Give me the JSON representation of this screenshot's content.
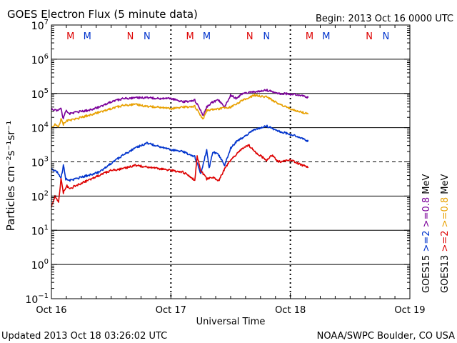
{
  "chart_data": {
    "type": "line",
    "title": "GOES Electron Flux (5 minute data)",
    "begin_label": "Begin: 2013 Oct 16 0000 UTC",
    "xlabel": "Universal Time",
    "ylabel": "Particles cm⁻²s⁻¹sr⁻¹",
    "y_scale": "log",
    "ylim_exp": [
      -1,
      7
    ],
    "y_ticks": [
      {
        "base": "10",
        "exp": "7",
        "e": 7
      },
      {
        "base": "10",
        "exp": "6",
        "e": 6
      },
      {
        "base": "10",
        "exp": "5",
        "e": 5
      },
      {
        "base": "10",
        "exp": "4",
        "e": 4
      },
      {
        "base": "10",
        "exp": "3",
        "e": 3
      },
      {
        "base": "10",
        "exp": "2",
        "e": 2
      },
      {
        "base": "10",
        "exp": "1",
        "e": 1
      },
      {
        "base": "10",
        "exp": "0",
        "e": 0
      },
      {
        "base": "10",
        "exp": "−1",
        "e": -1
      }
    ],
    "xlim_days": [
      0,
      3
    ],
    "x_ticks": [
      {
        "label": "Oct 16",
        "day": 0
      },
      {
        "label": "Oct 17",
        "day": 1
      },
      {
        "label": "Oct 18",
        "day": 2
      },
      {
        "label": "Oct 19",
        "day": 3
      }
    ],
    "threshold_exp": 3,
    "mn_markers": [
      {
        "label": "M",
        "day": 0.16,
        "sat": "GOES13"
      },
      {
        "label": "M",
        "day": 0.3,
        "sat": "GOES15"
      },
      {
        "label": "N",
        "day": 0.66,
        "sat": "GOES13"
      },
      {
        "label": "N",
        "day": 0.8,
        "sat": "GOES15"
      },
      {
        "label": "M",
        "day": 1.16,
        "sat": "GOES13"
      },
      {
        "label": "M",
        "day": 1.3,
        "sat": "GOES15"
      },
      {
        "label": "N",
        "day": 1.66,
        "sat": "GOES13"
      },
      {
        "label": "N",
        "day": 1.8,
        "sat": "GOES15"
      },
      {
        "label": "M",
        "day": 2.16,
        "sat": "GOES13"
      },
      {
        "label": "M",
        "day": 2.3,
        "sat": "GOES15"
      },
      {
        "label": "N",
        "day": 2.66,
        "sat": "GOES13"
      },
      {
        "label": "N",
        "day": 2.8,
        "sat": "GOES15"
      }
    ],
    "satellite_colors": {
      "GOES13": "#dd0000",
      "GOES15": "#0033cc"
    },
    "legend": {
      "GOES15": {
        "name": "GOES15",
        "e2": ">=2",
        "e08": ">=0.8",
        "unit": "MeV"
      },
      "GOES13": {
        "name": "GOES13",
        "e2": ">=2",
        "e08": ">=0.8",
        "unit": "MeV"
      }
    },
    "series": [
      {
        "name": "GOES15 >=0.8 MeV",
        "color": "#7b0099",
        "days": [
          0,
          0.05,
          0.08,
          0.1,
          0.12,
          0.15,
          0.2,
          0.3,
          0.4,
          0.5,
          0.6,
          0.7,
          0.8,
          0.9,
          1.0,
          1.1,
          1.2,
          1.25,
          1.27,
          1.3,
          1.35,
          1.4,
          1.45,
          1.5,
          1.55,
          1.6,
          1.7,
          1.8,
          1.9,
          2.0,
          2.1,
          2.15
        ],
        "log_values": [
          4.55,
          4.5,
          4.55,
          4.25,
          4.5,
          4.4,
          4.45,
          4.5,
          4.6,
          4.75,
          4.85,
          4.87,
          4.88,
          4.85,
          4.85,
          4.75,
          4.8,
          4.5,
          4.35,
          4.6,
          4.75,
          4.8,
          4.6,
          4.95,
          4.85,
          5.0,
          5.05,
          5.1,
          5.0,
          4.98,
          4.95,
          4.88
        ]
      },
      {
        "name": "GOES13 >=0.8 MeV",
        "color": "#e8a000",
        "days": [
          0,
          0.03,
          0.06,
          0.08,
          0.1,
          0.13,
          0.2,
          0.3,
          0.4,
          0.5,
          0.6,
          0.7,
          0.8,
          0.9,
          1.0,
          1.1,
          1.2,
          1.25,
          1.27,
          1.3,
          1.4,
          1.5,
          1.6,
          1.7,
          1.8,
          1.9,
          2.0,
          2.1,
          2.15
        ],
        "log_values": [
          4.0,
          4.1,
          4.0,
          4.25,
          4.1,
          4.2,
          4.25,
          4.35,
          4.45,
          4.55,
          4.65,
          4.68,
          4.62,
          4.6,
          4.55,
          4.6,
          4.62,
          4.35,
          4.25,
          4.5,
          4.55,
          4.6,
          4.8,
          4.95,
          4.9,
          4.7,
          4.55,
          4.45,
          4.4
        ]
      },
      {
        "name": "GOES15 >=2 MeV",
        "color": "#0033cc",
        "days": [
          0,
          0.05,
          0.08,
          0.1,
          0.12,
          0.15,
          0.2,
          0.3,
          0.4,
          0.5,
          0.6,
          0.7,
          0.8,
          0.9,
          1.0,
          1.1,
          1.2,
          1.25,
          1.3,
          1.32,
          1.35,
          1.4,
          1.45,
          1.5,
          1.55,
          1.6,
          1.7,
          1.8,
          1.9,
          2.0,
          2.1,
          2.15
        ],
        "log_values": [
          2.8,
          2.7,
          2.5,
          2.9,
          2.5,
          2.45,
          2.5,
          2.6,
          2.7,
          2.95,
          3.2,
          3.4,
          3.55,
          3.45,
          3.35,
          3.3,
          3.15,
          2.65,
          3.35,
          2.8,
          3.3,
          3.2,
          2.9,
          3.4,
          3.6,
          3.7,
          3.95,
          4.05,
          3.9,
          3.8,
          3.7,
          3.6
        ]
      },
      {
        "name": "GOES13 >=2 MeV",
        "color": "#dd0000",
        "days": [
          0,
          0.03,
          0.06,
          0.08,
          0.1,
          0.13,
          0.15,
          0.2,
          0.3,
          0.4,
          0.5,
          0.6,
          0.7,
          0.8,
          0.9,
          1.0,
          1.1,
          1.15,
          1.2,
          1.22,
          1.25,
          1.3,
          1.35,
          1.4,
          1.45,
          1.5,
          1.6,
          1.65,
          1.7,
          1.8,
          1.85,
          1.9,
          2.0,
          2.1,
          2.15
        ],
        "log_values": [
          1.7,
          2.0,
          1.8,
          2.5,
          2.1,
          2.3,
          2.2,
          2.3,
          2.45,
          2.6,
          2.75,
          2.8,
          2.9,
          2.85,
          2.8,
          2.75,
          2.7,
          2.6,
          2.45,
          3.15,
          2.75,
          2.5,
          2.55,
          2.45,
          2.8,
          3.05,
          3.4,
          3.5,
          3.3,
          3.05,
          3.2,
          3.0,
          3.05,
          2.9,
          2.85
        ]
      }
    ]
  },
  "footer": {
    "updated": "Updated 2013 Oct 18 03:26:02 UTC",
    "credit": "NOAA/SWPC Boulder, CO USA"
  }
}
